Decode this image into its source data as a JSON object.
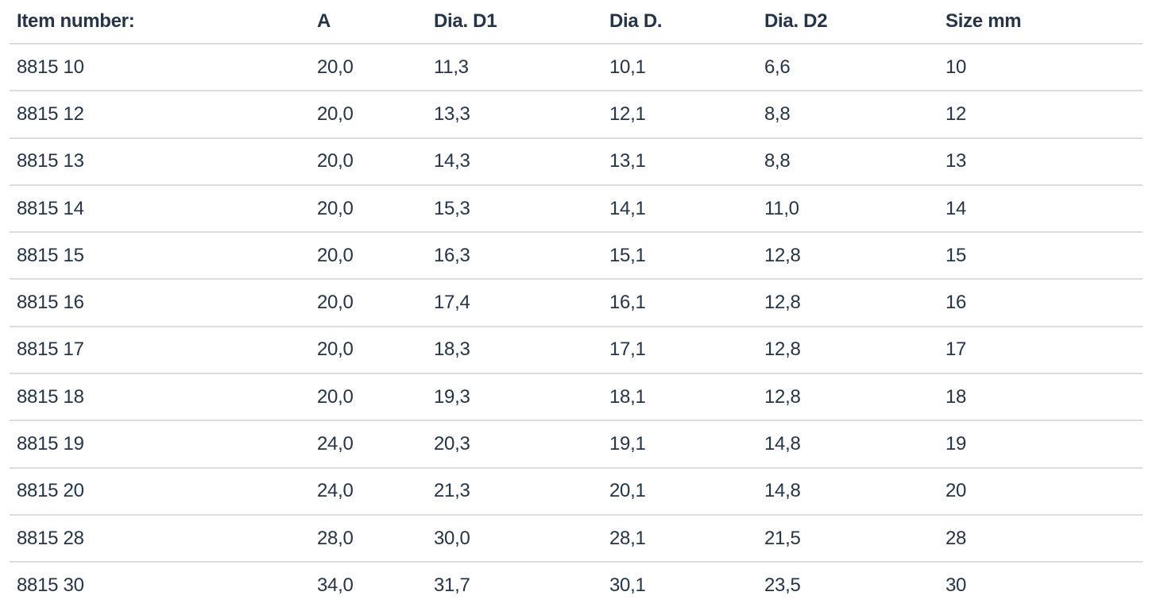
{
  "colors": {
    "text": "#253447",
    "divider": "#dcdcdc",
    "background": "#ffffff"
  },
  "table": {
    "columns": [
      {
        "key": "item-number",
        "label": "Item number:"
      },
      {
        "key": "a",
        "label": "A"
      },
      {
        "key": "dia-d1",
        "label": "Dia. D1"
      },
      {
        "key": "dia-d",
        "label": "Dia D."
      },
      {
        "key": "dia-d2",
        "label": "Dia. D2"
      },
      {
        "key": "size-mm",
        "label": "Size mm"
      }
    ],
    "rows": [
      [
        "8815 10",
        "20,0",
        "11,3",
        "10,1",
        "6,6",
        "10"
      ],
      [
        "8815 12",
        "20,0",
        "13,3",
        "12,1",
        "8,8",
        "12"
      ],
      [
        "8815 13",
        "20,0",
        "14,3",
        "13,1",
        "8,8",
        "13"
      ],
      [
        "8815 14",
        "20,0",
        "15,3",
        "14,1",
        "11,0",
        "14"
      ],
      [
        "8815 15",
        "20,0",
        "16,3",
        "15,1",
        "12,8",
        "15"
      ],
      [
        "8815 16",
        "20,0",
        "17,4",
        "16,1",
        "12,8",
        "16"
      ],
      [
        "8815 17",
        "20,0",
        "18,3",
        "17,1",
        "12,8",
        "17"
      ],
      [
        "8815 18",
        "20,0",
        "19,3",
        "18,1",
        "12,8",
        "18"
      ],
      [
        "8815 19",
        "24,0",
        "20,3",
        "19,1",
        "14,8",
        "19"
      ],
      [
        "8815 20",
        "24,0",
        "21,3",
        "20,1",
        "14,8",
        "20"
      ],
      [
        "8815 28",
        "28,0",
        "30,0",
        "28,1",
        "21,5",
        "28"
      ],
      [
        "8815 30",
        "34,0",
        "31,7",
        "30,1",
        "23,5",
        "30"
      ]
    ]
  }
}
